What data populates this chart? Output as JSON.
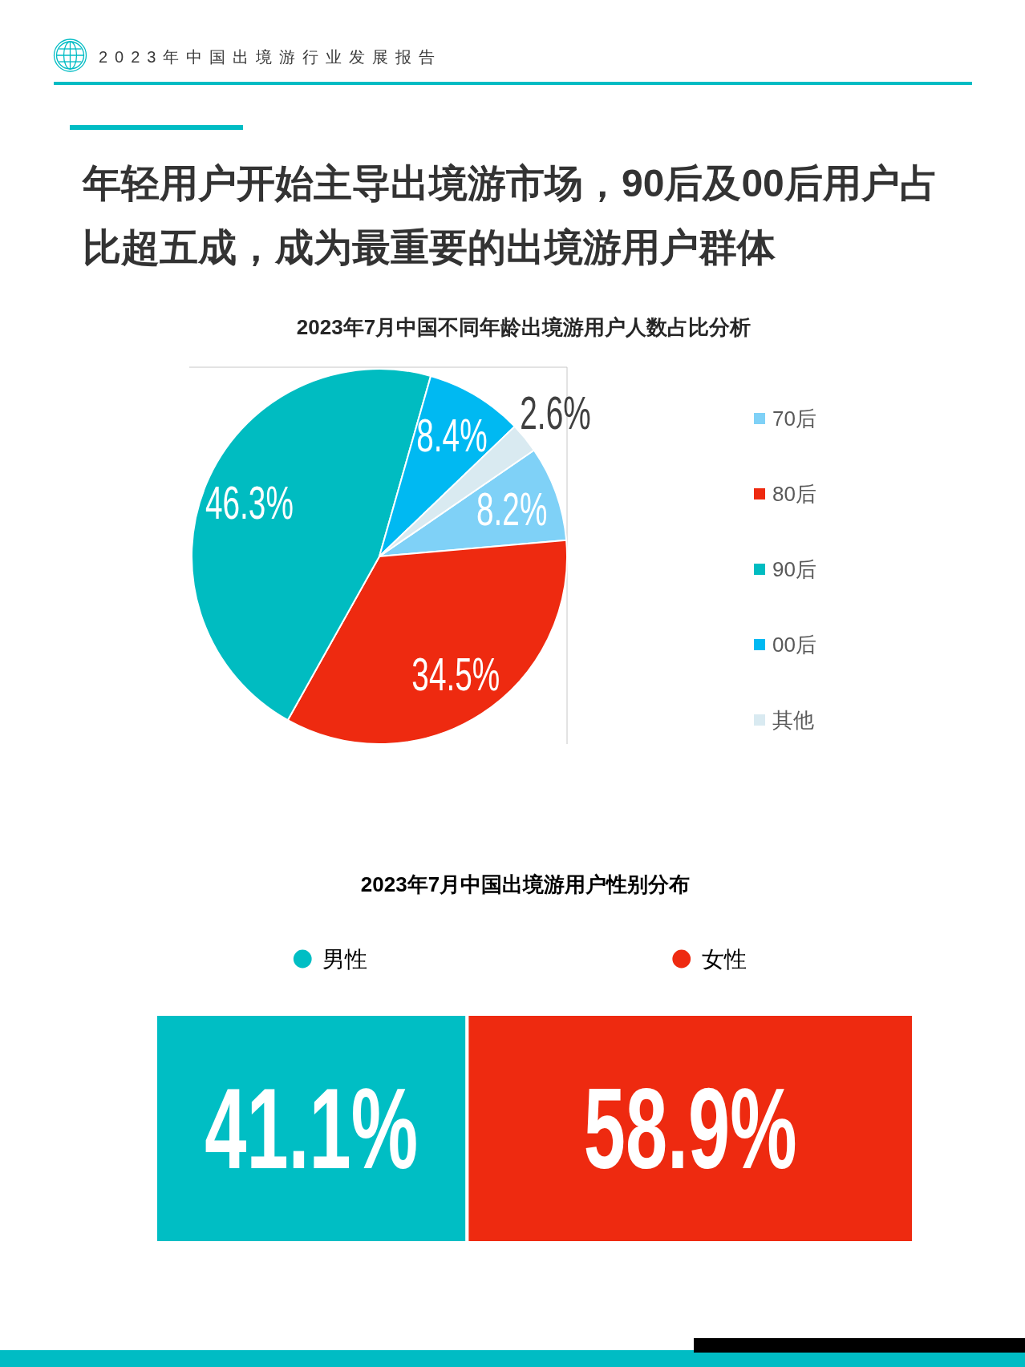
{
  "chart_data": [
    {
      "type": "other",
      "title": "2023年中国出境游行业发展报告",
      "subtitle": "年轻用户开始主导出境游市场，90后及00后用户占比超五成，成为最重要的出境游用户群体"
    },
    {
      "type": "pie",
      "title": "2023年7月中国不同年龄出境游用户人数占比分析",
      "categories": [
        "70后",
        "80后",
        "90后",
        "00后",
        "其他"
      ],
      "values": [
        8.2,
        34.5,
        46.3,
        8.4,
        2.6
      ],
      "colors": [
        "#7fd1f7",
        "#ee2a10",
        "#00bcc1",
        "#00b9f2",
        "#d9eaf1"
      ],
      "value_labels": [
        "8.2%",
        "34.5%",
        "46.3%",
        "8.4%",
        "2.6%"
      ],
      "legend": "right"
    },
    {
      "type": "bar",
      "title": "2023年7月中国出境游用户性别分布",
      "orientation": "horizontal",
      "stacked": true,
      "categories": [
        null
      ],
      "series": [
        {
          "name": "男性",
          "color": "#00bec4",
          "values": [
            41.1
          ],
          "value_labels": [
            "41.1%"
          ]
        },
        {
          "name": "女性",
          "color": "#ee2a10",
          "values": [
            58.9
          ],
          "value_labels": [
            "58.9%"
          ]
        }
      ],
      "xlim": [
        0,
        100
      ],
      "tick_labels": false,
      "legend": "top"
    }
  ]
}
